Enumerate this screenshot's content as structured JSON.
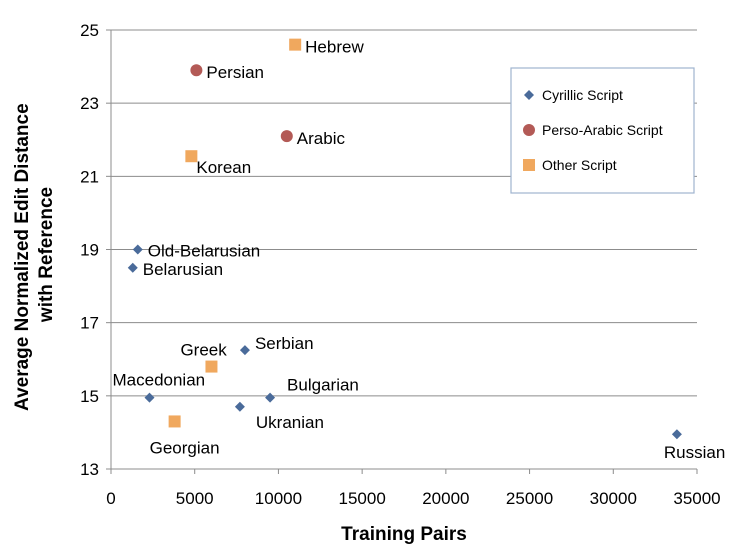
{
  "chart_data": {
    "type": "scatter",
    "xlabel": "Training Pairs",
    "ylabel_lines": [
      "Average Normalized Edit Distance",
      "with Reference"
    ],
    "xlim": [
      0,
      35000
    ],
    "ylim": [
      13,
      25
    ],
    "xticks": [
      0,
      5000,
      10000,
      15000,
      20000,
      25000,
      30000,
      35000
    ],
    "yticks": [
      13,
      15,
      17,
      19,
      21,
      23,
      25
    ],
    "grid": "horizontal",
    "legend_position": "top-right",
    "series": [
      {
        "name": "Cyrillic Script",
        "marker": "diamond",
        "color": "#4a6b9a",
        "points": [
          {
            "label": "Old-Belarusian",
            "x": 1600,
            "y": 19.0
          },
          {
            "label": "Belarusian",
            "x": 1300,
            "y": 18.5
          },
          {
            "label": "Serbian",
            "x": 8000,
            "y": 16.25
          },
          {
            "label": "Macedonian",
            "x": 2300,
            "y": 14.95
          },
          {
            "label": "Ukranian",
            "x": 7700,
            "y": 14.7
          },
          {
            "label": "Bulgarian",
            "x": 9500,
            "y": 14.95
          },
          {
            "label": "Russian",
            "x": 33800,
            "y": 13.95
          }
        ]
      },
      {
        "name": "Perso-Arabic Script",
        "marker": "circle",
        "color": "#b35a56",
        "points": [
          {
            "label": "Persian",
            "x": 5100,
            "y": 23.9
          },
          {
            "label": "Arabic",
            "x": 10500,
            "y": 22.1
          }
        ]
      },
      {
        "name": "Other Script",
        "marker": "square",
        "color": "#f0a85e",
        "points": [
          {
            "label": "Hebrew",
            "x": 11000,
            "y": 24.6
          },
          {
            "label": "Korean",
            "x": 4800,
            "y": 21.55
          },
          {
            "label": "Greek",
            "x": 6000,
            "y": 15.8
          },
          {
            "label": "Georgian",
            "x": 3800,
            "y": 14.3
          }
        ]
      }
    ]
  }
}
